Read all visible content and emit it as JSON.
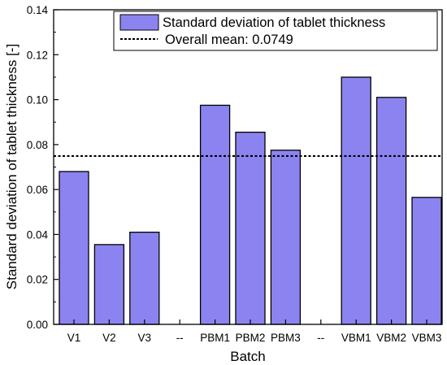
{
  "chart_data": {
    "type": "bar",
    "categories": [
      "V1",
      "V2",
      "V3",
      "--",
      "PBM1",
      "PBM2",
      "PBM3",
      "--",
      "VBM1",
      "VBM2",
      "VBM3"
    ],
    "series": [
      {
        "name": "Standard deviation of tablet thickness",
        "values": [
          0.068,
          0.0355,
          0.041,
          null,
          0.0975,
          0.0855,
          0.0775,
          null,
          0.11,
          0.101,
          0.0565
        ],
        "color": "#8b84f0"
      }
    ],
    "reference_line": {
      "label": "Overall mean: 0.0749",
      "value": 0.0749,
      "style": "dotted",
      "color": "#000000"
    },
    "xlabel": "Batch",
    "ylabel": "Standard deviation of tablet thickness [-]",
    "ylim": [
      0,
      0.14
    ],
    "yticks": [
      "0.00",
      "0.02",
      "0.04",
      "0.06",
      "0.08",
      "0.10",
      "0.12",
      "0.14"
    ],
    "ytick_values": [
      0,
      0.02,
      0.04,
      0.06,
      0.08,
      0.1,
      0.12,
      0.14
    ],
    "grid": false,
    "legend": {
      "position": "top-right"
    }
  }
}
